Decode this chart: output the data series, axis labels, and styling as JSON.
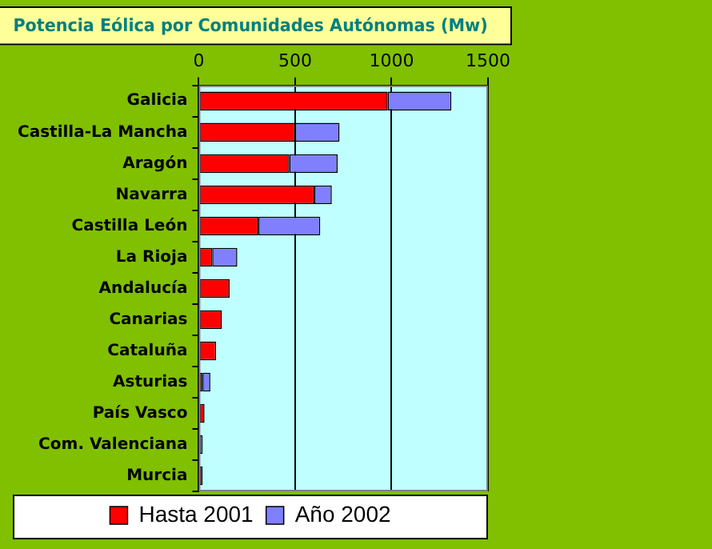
{
  "chart_data": {
    "type": "bar",
    "orientation": "horizontal",
    "stacked": true,
    "title": "Potencia Eólica por Comunidades Autónomas (Mw)",
    "categories": [
      "Galicia",
      "Castilla-La Mancha",
      "Aragón",
      "Navarra",
      "Castilla León",
      "La Rioja",
      "Andalucía",
      "Canarias",
      "Cataluña",
      "Asturias",
      "País Vasco",
      "Com. Valenciana",
      "Murcia"
    ],
    "series": [
      {
        "name": "Hasta 2001",
        "color": "#ff0000",
        "values": [
          980,
          500,
          470,
          600,
          310,
          70,
          160,
          120,
          90,
          20,
          30,
          null,
          20
        ]
      },
      {
        "name": "Año 2002",
        "color": "#8080ff",
        "values": [
          330,
          230,
          250,
          90,
          320,
          130,
          null,
          null,
          null,
          40,
          null,
          20,
          null
        ]
      }
    ],
    "xlim": [
      0,
      1500
    ],
    "xticks": [
      0,
      500,
      1000,
      1500
    ],
    "grid": "x",
    "legend": "bottom"
  }
}
